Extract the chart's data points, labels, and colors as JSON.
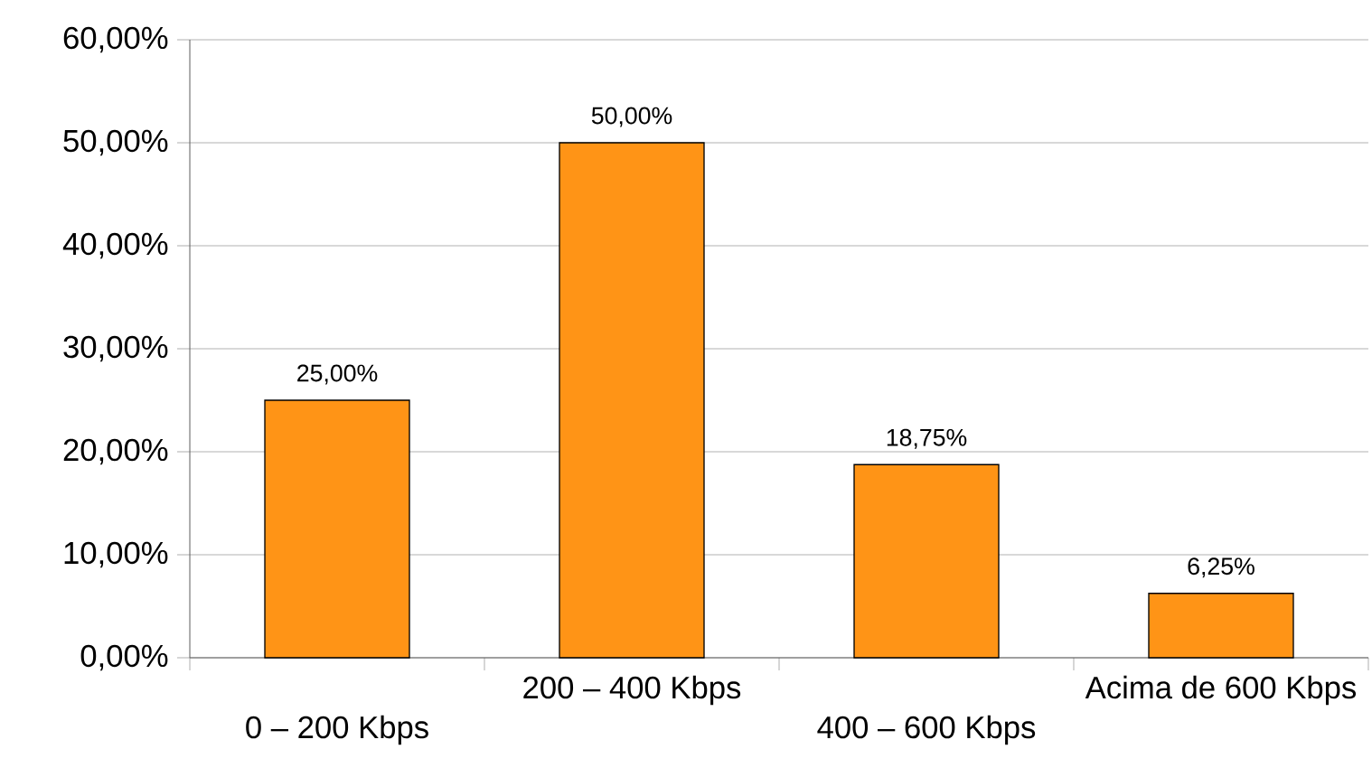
{
  "chart_data": {
    "type": "bar",
    "categories": [
      "0 – 200 Kbps",
      "200 – 400 Kbps",
      "400 – 600 Kbps",
      "Acima de 600 Kbps"
    ],
    "values": [
      25,
      50,
      18.75,
      6.25
    ],
    "value_labels": [
      "25,00%",
      "50,00%",
      "18,75%",
      "6,25%"
    ],
    "color": "#ff9416",
    "ylim": [
      0,
      60
    ],
    "yticks": [
      {
        "value": 0,
        "label": "0,00%"
      },
      {
        "value": 10,
        "label": "10,00%"
      },
      {
        "value": 20,
        "label": "20,00%"
      },
      {
        "value": 30,
        "label": "30,00%"
      },
      {
        "value": 40,
        "label": "40,00%"
      },
      {
        "value": 50,
        "label": "50,00%"
      },
      {
        "value": 60,
        "label": "60,00%"
      }
    ],
    "grid": "y"
  }
}
